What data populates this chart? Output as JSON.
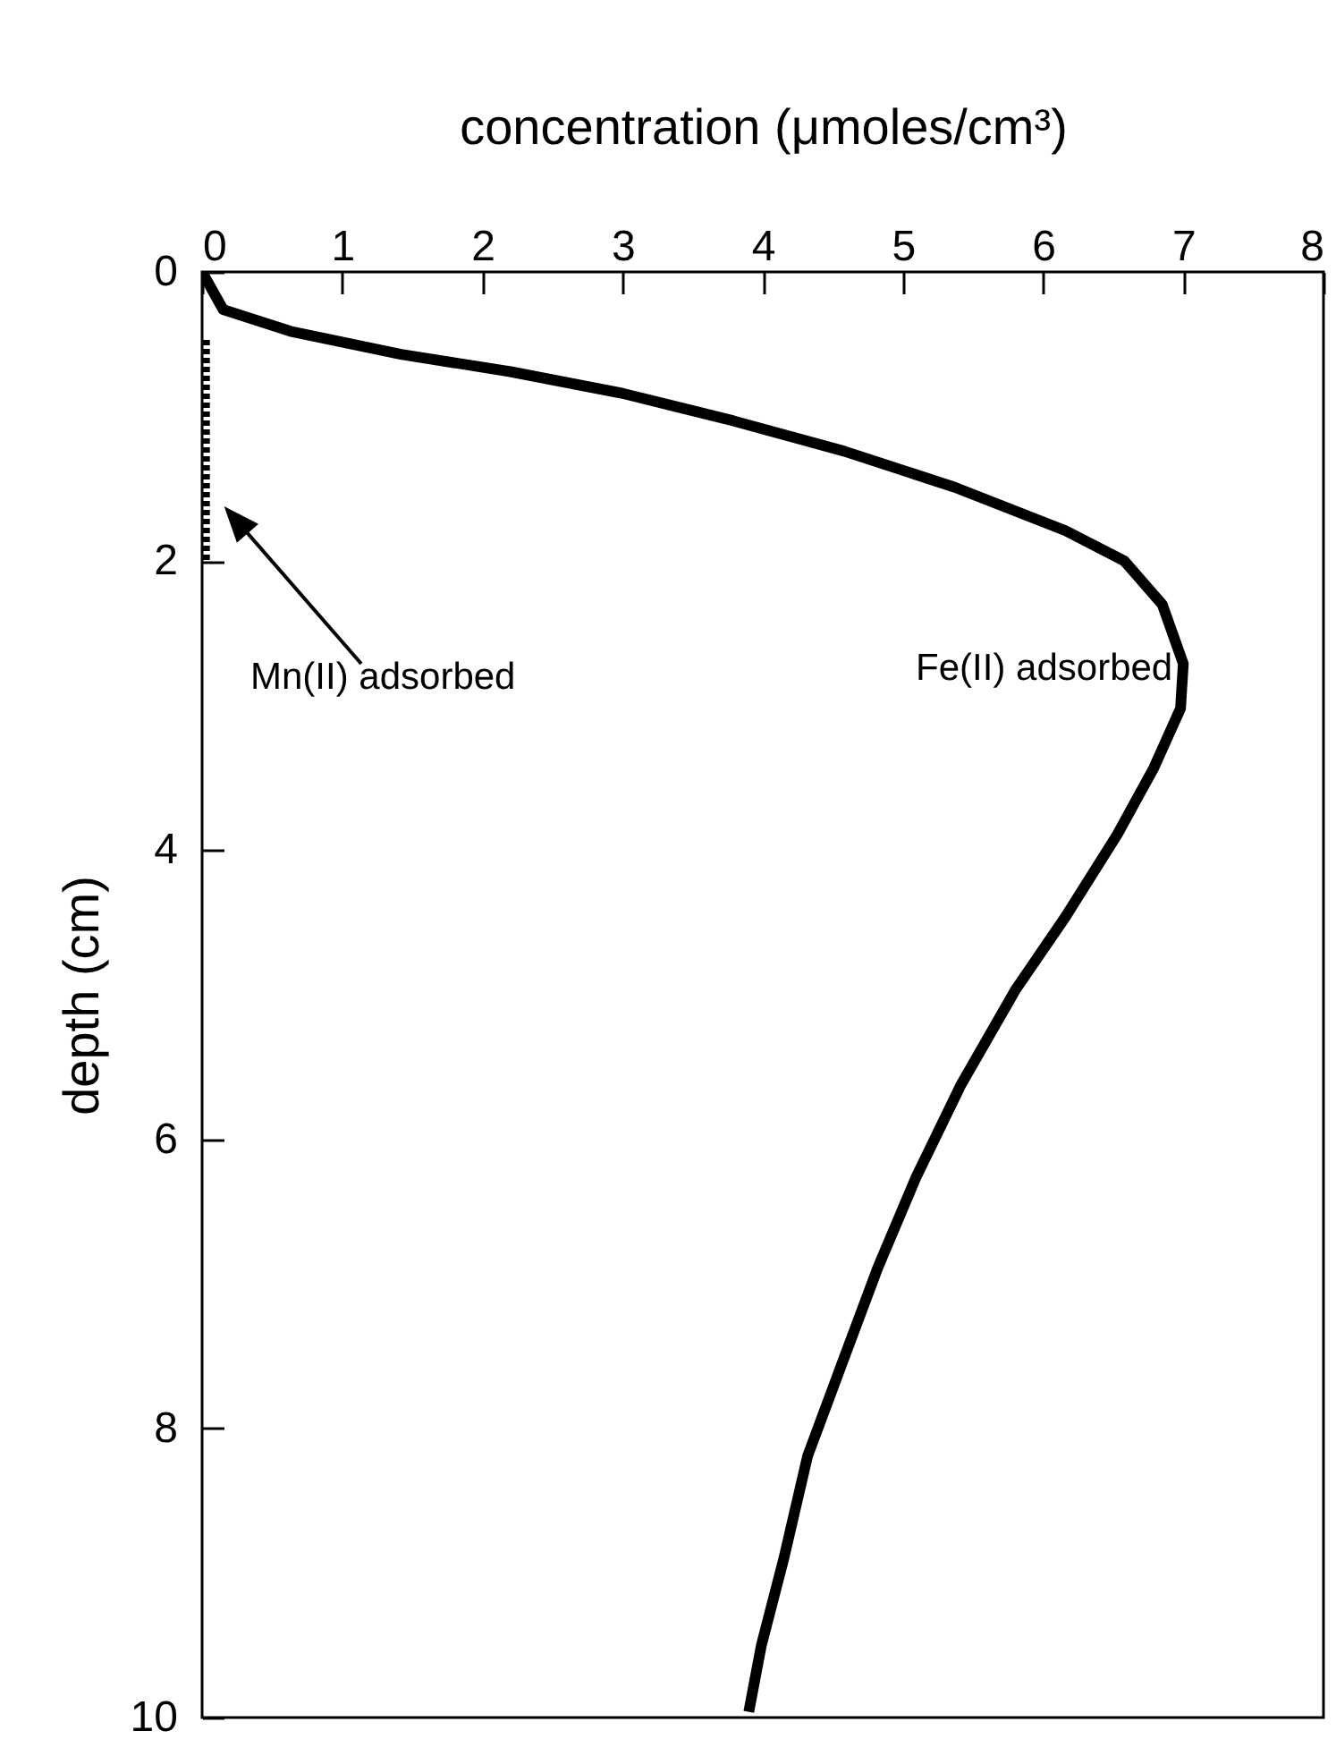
{
  "chart_data": {
    "type": "line",
    "xlabel": "concentration  (μmoles/cm³)",
    "ylabel": "depth (cm)",
    "xlim": [
      0,
      8
    ],
    "xticks": [
      0,
      1,
      2,
      3,
      4,
      5,
      6,
      7,
      8
    ],
    "ylim": [
      10,
      0
    ],
    "yticks": [
      0,
      2,
      4,
      6,
      8,
      10
    ],
    "grid": false,
    "marker": "none",
    "series": [
      {
        "color": "#000000",
        "line_style": "solid",
        "x": [
          0,
          0.15,
          0.63,
          1.42,
          2.2,
          3.0,
          3.79,
          4.58,
          5.37,
          6.16,
          6.58,
          6.85,
          7.0,
          6.98,
          6.79,
          6.53,
          6.16,
          5.8,
          5.41,
          5.09,
          4.82,
          4.55,
          4.32,
          4.15,
          3.99,
          3.9
        ],
        "values": [
          0,
          0.26,
          0.41,
          0.57,
          0.69,
          0.84,
          1.03,
          1.24,
          1.49,
          1.79,
          2.0,
          2.3,
          2.71,
          3.02,
          3.43,
          3.89,
          4.46,
          4.97,
          5.63,
          6.27,
          6.89,
          7.59,
          8.19,
          8.9,
          9.5,
          9.96
        ]
      },
      {
        "color": "#000000",
        "line_style": "dotted",
        "x": [
          0.03,
          0.03
        ],
        "values": [
          0.47,
          2.0
        ]
      }
    ],
    "annotations": [
      {
        "text": "Fe(II) adsorbed",
        "x": 7.0,
        "y": 2.75
      },
      "Mn(II) adsorbed"
    ]
  }
}
